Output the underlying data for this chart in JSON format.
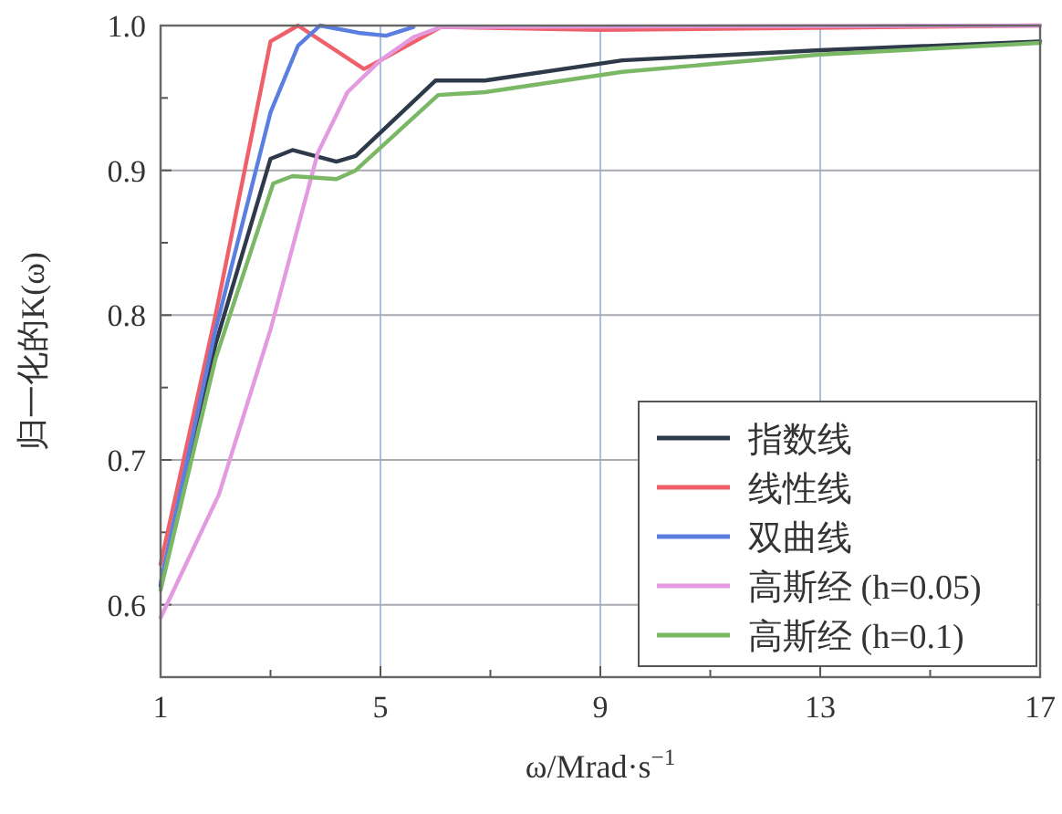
{
  "chart_data": {
    "type": "line",
    "xlabel": "ω/Mrad·s$^{−1}$",
    "ylabel": "归一化的K(ω)",
    "xlim": [
      1,
      17
    ],
    "ylim": [
      0.55,
      1.0
    ],
    "xticks": [
      1,
      {
        "value": 3,
        "label": null
      },
      5,
      {
        "value": 7,
        "label": null
      },
      9,
      {
        "value": 11,
        "label": null
      },
      13,
      {
        "value": 15,
        "label": null
      },
      17
    ],
    "yticks": [
      {
        "value": 0.6,
        "label": "0.6"
      },
      {
        "value": 0.65,
        "label": null
      },
      {
        "value": 0.7,
        "label": "0.7"
      },
      {
        "value": 0.75,
        "label": null
      },
      {
        "value": 0.8,
        "label": "0.8"
      },
      {
        "value": 0.85,
        "label": null
      },
      {
        "value": 0.9,
        "label": "0.9"
      },
      {
        "value": 0.95,
        "label": null
      },
      {
        "value": 1.0,
        "label": "1.0"
      }
    ],
    "grid": true,
    "legend": "bottom right",
    "marker": "none",
    "line_style": "solid",
    "series": [
      {
        "name": "指数线",
        "color": "#2e3a4a",
        "x": [
          1,
          2,
          3,
          3.4,
          4.2,
          4.55,
          6,
          6.9,
          9.4,
          13,
          17
        ],
        "values": [
          0.613,
          0.78,
          0.908,
          0.914,
          0.906,
          0.91,
          0.962,
          0.962,
          0.976,
          0.983,
          0.989
        ]
      },
      {
        "name": "线性线",
        "color": "#f0606a",
        "x": [
          1,
          2,
          3,
          3.5,
          4.7,
          5,
          6.1,
          9,
          17
        ],
        "values": [
          0.628,
          0.8,
          0.989,
          1.0,
          0.97,
          0.976,
          0.999,
          0.997,
          1.0
        ]
      },
      {
        "name": "双曲线",
        "color": "#5b7fe0",
        "x": [
          1,
          2,
          3,
          3.5,
          3.9,
          4.6,
          5.1,
          5.6
        ],
        "values": [
          0.615,
          0.79,
          0.94,
          0.986,
          1.0,
          0.995,
          0.993,
          0.999
        ]
      },
      {
        "name": "高斯经 (h=0.05)",
        "color": "#e39ae0",
        "x": [
          1,
          2.06,
          3,
          3.86,
          4.4,
          5,
          5.6,
          6.1,
          17
        ],
        "values": [
          0.591,
          0.676,
          0.79,
          0.912,
          0.954,
          0.976,
          0.992,
          0.999,
          1.0
        ]
      },
      {
        "name": "高斯经 (h=0.1)",
        "color": "#7ab866",
        "x": [
          1,
          2,
          3.05,
          3.4,
          4.2,
          4.55,
          6.05,
          6.9,
          9.4,
          13,
          17
        ],
        "values": [
          0.61,
          0.77,
          0.891,
          0.896,
          0.894,
          0.9,
          0.952,
          0.954,
          0.968,
          0.98,
          0.988
        ]
      }
    ]
  }
}
